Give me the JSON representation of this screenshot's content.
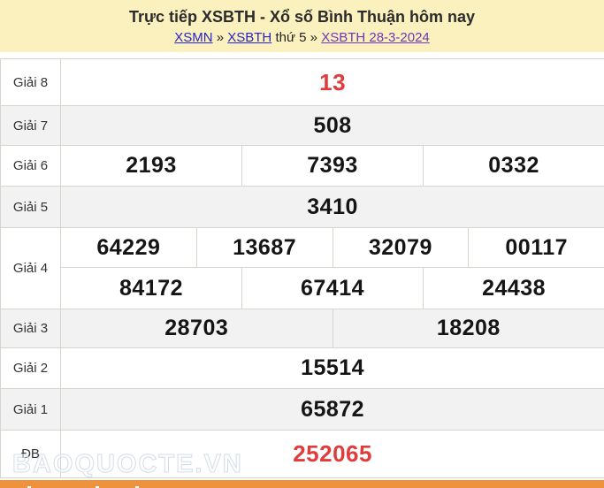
{
  "header": {
    "title": "Trực tiếp XSBTH - Xổ số Bình Thuận hôm nay",
    "breadcrumb": {
      "xsmn": "XSMN",
      "sep1": "»",
      "xsbth": "XSBTH",
      "weekday": "thứ 5",
      "sep2": "»",
      "date_link": "XSBTH 28-3-2024"
    }
  },
  "results": {
    "rows": [
      {
        "label": "Giải 8",
        "values": [
          "13"
        ]
      },
      {
        "label": "Giải 7",
        "values": [
          "508"
        ]
      },
      {
        "label": "Giải 6",
        "values": [
          "2193",
          "7393",
          "0332"
        ]
      },
      {
        "label": "Giải 5",
        "values": [
          "3410"
        ]
      },
      {
        "label": "Giải 4",
        "values": [
          "64229",
          "13687",
          "32079",
          "00117",
          "84172",
          "67414",
          "24438"
        ]
      },
      {
        "label": "Giải 3",
        "values": [
          "28703",
          "18208"
        ]
      },
      {
        "label": "Giải 2",
        "values": [
          "15514"
        ]
      },
      {
        "label": "Giải 1",
        "values": [
          "65872"
        ]
      },
      {
        "label": "ĐB",
        "values": [
          "252065"
        ]
      }
    ],
    "highlighted_rows": [
      "Giải 8",
      "ĐB"
    ]
  },
  "watermark": "BAOQUOCTE.VN",
  "colors": {
    "header_bg": "#fbf1bf",
    "highlight_red": "#e03c3c",
    "bottom_bar_orange": "#ef923d",
    "row_alt_gray": "#f2f2f2",
    "border_gray": "#d9d5ce",
    "link_blue": "#2823c8",
    "link_purple": "#7135b8"
  }
}
